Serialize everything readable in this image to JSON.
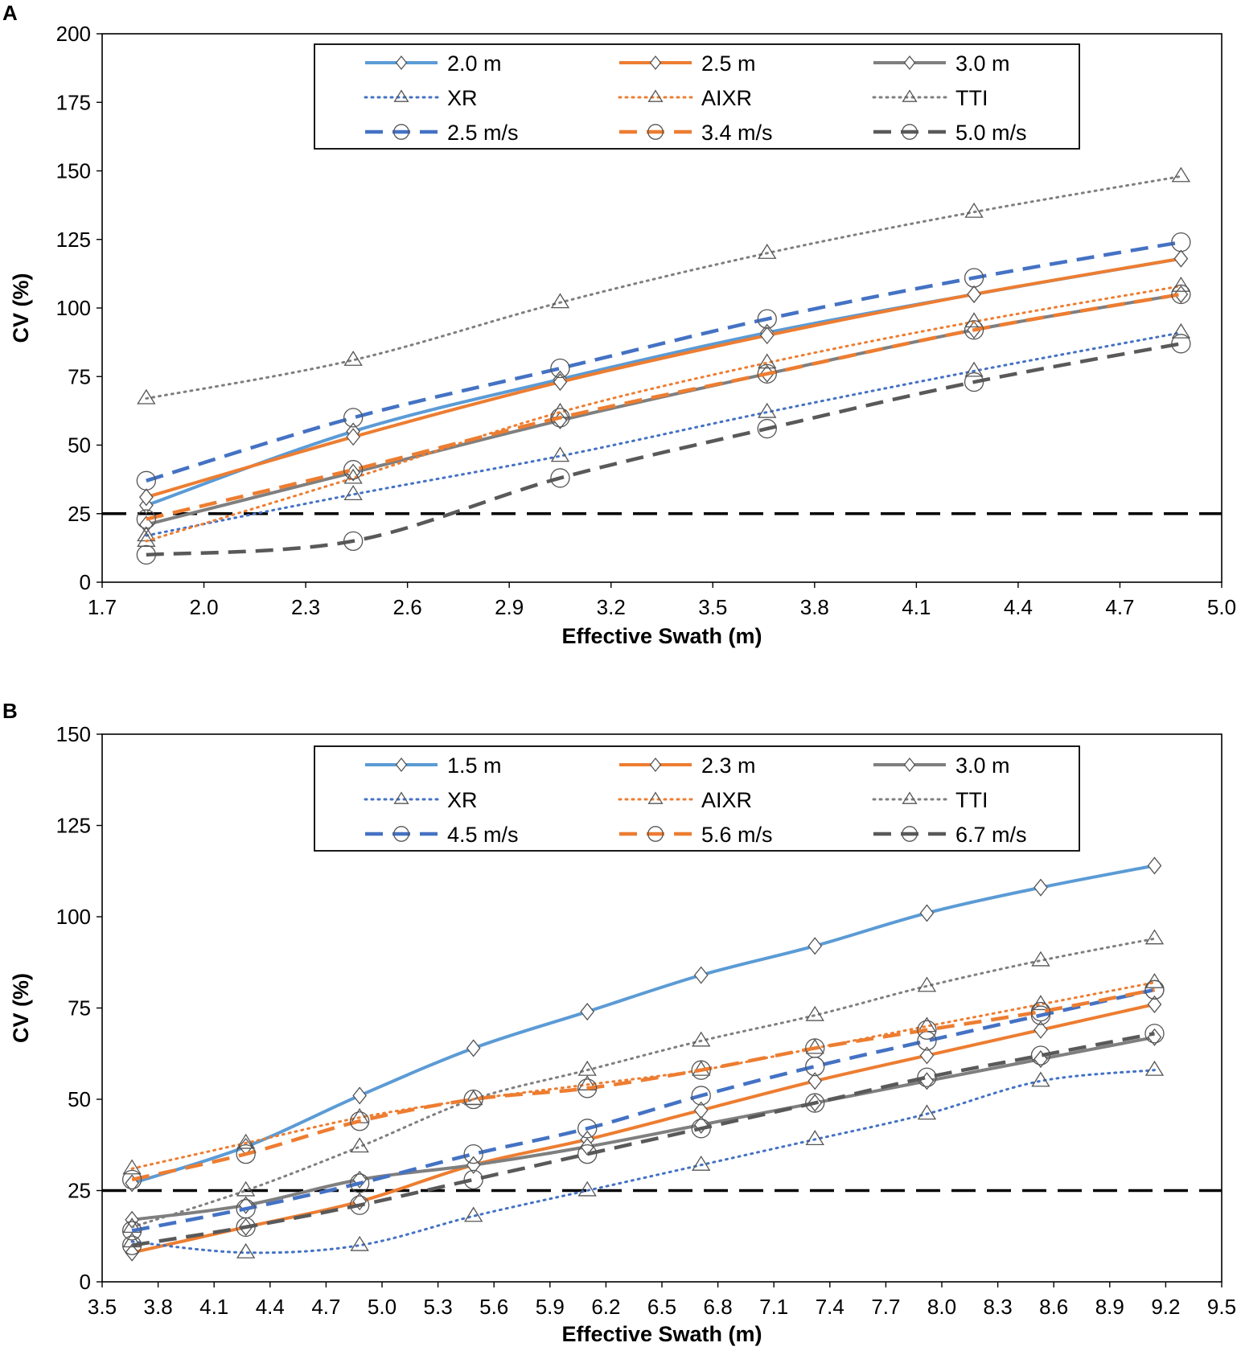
{
  "chart_data": [
    {
      "type": "line",
      "panel_label": "A",
      "xlabel": "Effective Swath (m)",
      "ylabel": "CV (%)",
      "xlim": [
        1.7,
        5.0
      ],
      "ylim": [
        0,
        200
      ],
      "xticks": [
        "1.7",
        "2.0",
        "2.3",
        "2.6",
        "2.9",
        "3.2",
        "3.5",
        "3.8",
        "4.1",
        "4.4",
        "4.7",
        "5.0"
      ],
      "yticks": [
        "0",
        "25",
        "50",
        "75",
        "100",
        "125",
        "150",
        "175",
        "200"
      ],
      "threshold": 25,
      "x": [
        1.83,
        2.44,
        3.05,
        3.66,
        4.27,
        4.88
      ],
      "legend_position": "top-center",
      "series": [
        {
          "name": "2.0 m",
          "color": "#5b9bd5",
          "style": "solid",
          "marker": "diamond",
          "values": [
            28,
            55,
            74,
            91,
            105,
            118
          ]
        },
        {
          "name": "2.5 m",
          "color": "#ed7d31",
          "style": "solid",
          "marker": "diamond",
          "values": [
            31,
            53,
            73,
            90,
            105,
            118
          ]
        },
        {
          "name": "3.0 m",
          "color": "#7f7f7f",
          "style": "solid",
          "marker": "diamond",
          "values": [
            21,
            40,
            59,
            76,
            92,
            105
          ]
        },
        {
          "name": "XR",
          "color": "#4472c4",
          "style": "dotted",
          "marker": "triangle",
          "values": [
            17,
            32,
            46,
            62,
            77,
            91
          ]
        },
        {
          "name": "AIXR",
          "color": "#ed7d31",
          "style": "dotted",
          "marker": "triangle",
          "values": [
            15,
            38,
            62,
            80,
            95,
            108
          ]
        },
        {
          "name": "TTI",
          "color": "#7f7f7f",
          "style": "dotted",
          "marker": "triangle",
          "values": [
            67,
            81,
            102,
            120,
            135,
            148
          ]
        },
        {
          "name": "2.5 m/s",
          "color": "#4472c4",
          "style": "dashed",
          "marker": "circle",
          "values": [
            37,
            60,
            78,
            96,
            111,
            124
          ]
        },
        {
          "name": "3.4 m/s",
          "color": "#ed7d31",
          "style": "dashed",
          "marker": "circle",
          "values": [
            23,
            41,
            60,
            76,
            92,
            105
          ]
        },
        {
          "name": "5.0 m/s",
          "color": "#595959",
          "style": "dashed",
          "marker": "circle",
          "values": [
            10,
            15,
            38,
            56,
            73,
            87
          ]
        }
      ]
    },
    {
      "type": "line",
      "panel_label": "B",
      "xlabel": "Effective Swath (m)",
      "ylabel": "CV (%)",
      "xlim": [
        3.5,
        9.5
      ],
      "ylim": [
        0,
        150
      ],
      "xticks": [
        "3.5",
        "3.8",
        "4.1",
        "4.4",
        "4.7",
        "5.0",
        "5.3",
        "5.6",
        "5.9",
        "6.2",
        "6.5",
        "6.8",
        "7.1",
        "7.4",
        "7.7",
        "8.0",
        "8.3",
        "8.6",
        "8.9",
        "9.2",
        "9.5"
      ],
      "yticks": [
        "0",
        "25",
        "50",
        "75",
        "100",
        "125",
        "150"
      ],
      "threshold": 25,
      "x": [
        3.66,
        4.27,
        4.88,
        5.49,
        6.1,
        6.71,
        7.32,
        7.92,
        8.53,
        9.14
      ],
      "legend_position": "top-center",
      "series": [
        {
          "name": "1.5 m",
          "color": "#5b9bd5",
          "style": "solid",
          "marker": "diamond",
          "values": [
            27,
            37,
            51,
            64,
            74,
            84,
            92,
            101,
            108,
            114
          ]
        },
        {
          "name": "2.3 m",
          "color": "#ed7d31",
          "style": "solid",
          "marker": "diamond",
          "values": [
            8,
            15,
            22,
            32,
            39,
            47,
            55,
            62,
            69,
            76
          ]
        },
        {
          "name": "3.0 m",
          "color": "#7f7f7f",
          "style": "solid",
          "marker": "diamond",
          "values": [
            17,
            21,
            28,
            32,
            37,
            43,
            49,
            55,
            61,
            67
          ]
        },
        {
          "name": "XR",
          "color": "#4472c4",
          "style": "dotted",
          "marker": "triangle",
          "values": [
            11,
            8,
            10,
            18,
            25,
            32,
            39,
            46,
            55,
            58
          ]
        },
        {
          "name": "AIXR",
          "color": "#ed7d31",
          "style": "dotted",
          "marker": "triangle",
          "values": [
            31,
            38,
            45,
            50,
            54,
            58,
            64,
            70,
            76,
            82
          ]
        },
        {
          "name": "TTI",
          "color": "#7f7f7f",
          "style": "dotted",
          "marker": "triangle",
          "values": [
            15,
            25,
            37,
            50,
            58,
            66,
            73,
            81,
            88,
            94
          ]
        },
        {
          "name": "4.5 m/s",
          "color": "#4472c4",
          "style": "dashed",
          "marker": "circle",
          "values": [
            14,
            20,
            27,
            35,
            42,
            51,
            59,
            66,
            73,
            80
          ]
        },
        {
          "name": "5.6 m/s",
          "color": "#ed7d31",
          "style": "dashed",
          "marker": "circle",
          "values": [
            28,
            35,
            44,
            50,
            53,
            58,
            64,
            69,
            74,
            80
          ]
        },
        {
          "name": "6.7 m/s",
          "color": "#595959",
          "style": "dashed",
          "marker": "circle",
          "values": [
            10,
            15,
            21,
            28,
            35,
            42,
            49,
            56,
            62,
            68
          ]
        }
      ]
    }
  ]
}
